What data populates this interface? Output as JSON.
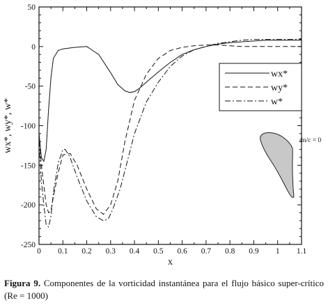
{
  "chart_data": {
    "type": "line",
    "xlabel": "x",
    "ylabel": "wx*, wy*, w*",
    "xlim": [
      0,
      1.1
    ],
    "ylim": [
      -250,
      50
    ],
    "x_ticks": [
      0,
      0.1,
      0.2,
      0.3,
      0.4,
      0.5,
      0.6,
      0.7,
      0.8,
      0.9,
      1,
      1.1
    ],
    "x_tick_labels": [
      "0",
      "0.1",
      "0.2",
      "0.3",
      "0.4",
      "0.5",
      "0.6",
      "0.7",
      "0.8",
      "0.9",
      "1",
      "1.1"
    ],
    "y_ticks": [
      -250,
      -200,
      -150,
      -100,
      -50,
      0,
      50
    ],
    "y_tick_labels": [
      "-250",
      "-200",
      "-150",
      "-100",
      "-50",
      "0",
      "50"
    ],
    "grid": false,
    "legend_position": "right",
    "annotation": "dn/c = 0",
    "series": [
      {
        "name": "wx*",
        "style": "solid",
        "x": [
          0,
          0.01,
          0.02,
          0.03,
          0.04,
          0.05,
          0.06,
          0.08,
          0.1,
          0.15,
          0.2,
          0.25,
          0.3,
          0.33,
          0.36,
          0.38,
          0.4,
          0.42,
          0.45,
          0.5,
          0.55,
          0.6,
          0.65,
          0.7,
          0.75,
          0.8,
          0.85,
          0.9,
          0.95,
          1.0,
          1.05,
          1.1
        ],
        "values": [
          -110,
          -140,
          -145,
          -130,
          -80,
          -40,
          -15,
          -5,
          -3,
          -1,
          0,
          -10,
          -33,
          -48,
          -56,
          -58,
          -57,
          -53,
          -45,
          -32,
          -20,
          -10,
          -4,
          0,
          3,
          5,
          6,
          7,
          8,
          8,
          8,
          8
        ]
      },
      {
        "name": "wy*",
        "style": "dashed",
        "x": [
          0,
          0.01,
          0.02,
          0.03,
          0.04,
          0.05,
          0.06,
          0.08,
          0.1,
          0.13,
          0.16,
          0.2,
          0.24,
          0.27,
          0.3,
          0.33,
          0.36,
          0.4,
          0.45,
          0.5,
          0.55,
          0.6,
          0.65,
          0.7,
          0.75,
          0.8,
          0.85,
          0.9,
          0.95,
          1.0,
          1.05,
          1.1
        ],
        "values": [
          -110,
          -150,
          -175,
          -200,
          -210,
          -208,
          -190,
          -160,
          -137,
          -135,
          -150,
          -180,
          -205,
          -212,
          -200,
          -170,
          -120,
          -68,
          -35,
          -15,
          -5,
          -1,
          1,
          2,
          2,
          1,
          0,
          0,
          0,
          0,
          0,
          0
        ]
      },
      {
        "name": "w*",
        "style": "dash-dot",
        "x": [
          0,
          0.01,
          0.02,
          0.03,
          0.04,
          0.05,
          0.06,
          0.08,
          0.1,
          0.11,
          0.13,
          0.16,
          0.2,
          0.24,
          0.27,
          0.29,
          0.31,
          0.34,
          0.37,
          0.4,
          0.45,
          0.5,
          0.55,
          0.6,
          0.65,
          0.7,
          0.75,
          0.8,
          0.85,
          0.9,
          0.95,
          1.0,
          1.05,
          1.1
        ],
        "values": [
          -120,
          -170,
          -200,
          -225,
          -228,
          -215,
          -185,
          -148,
          -130,
          -130,
          -140,
          -165,
          -195,
          -215,
          -220,
          -218,
          -205,
          -180,
          -145,
          -110,
          -70,
          -45,
          -25,
          -12,
          -4,
          0,
          4,
          6,
          8,
          9,
          9,
          9,
          9,
          9
        ]
      }
    ]
  },
  "caption": {
    "label": "Figura 9.",
    "text": " Componentes de la vorticidad instantánea para el flujo básico super-crítico (Re = 1000)"
  }
}
